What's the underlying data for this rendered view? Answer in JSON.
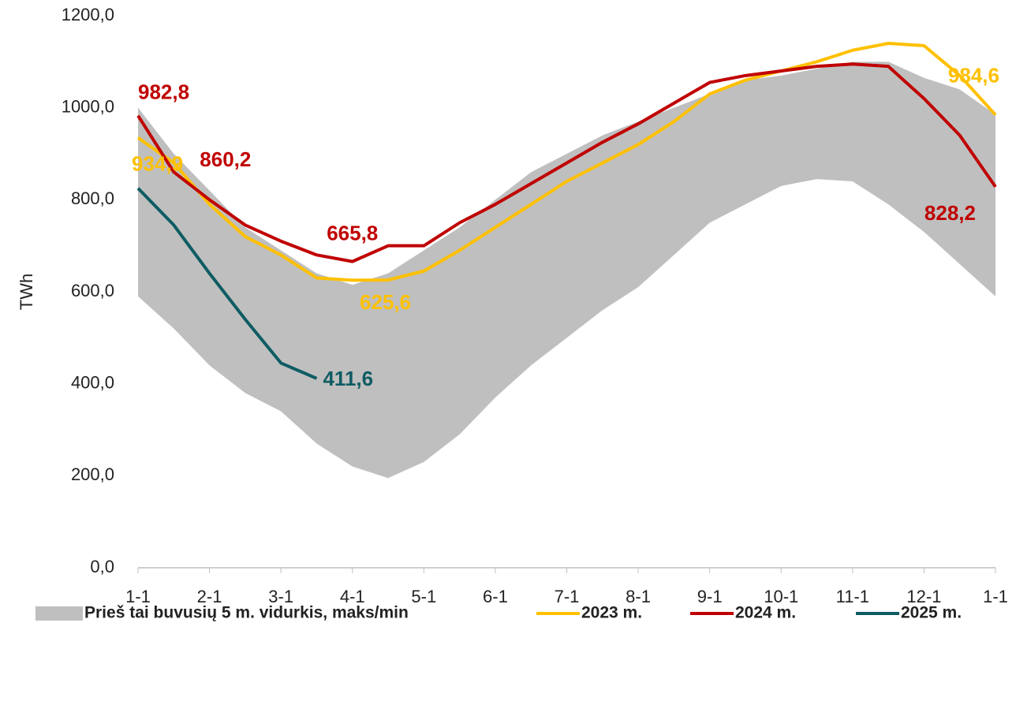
{
  "chart_data": {
    "type": "line",
    "y_label": "TWh",
    "x": [
      0,
      0.5,
      1,
      1.5,
      2,
      2.5,
      3,
      3.5,
      4,
      4.5,
      5,
      5.5,
      6,
      6.5,
      7,
      7.5,
      8,
      8.5,
      9,
      9.5,
      10,
      10.5,
      11,
      11.5,
      12
    ],
    "xlim": [
      0,
      12
    ],
    "xticks": [
      {
        "value": 0,
        "label": "1-1"
      },
      {
        "value": 1,
        "label": "2-1"
      },
      {
        "value": 2,
        "label": "3-1"
      },
      {
        "value": 3,
        "label": "4-1"
      },
      {
        "value": 4,
        "label": "5-1"
      },
      {
        "value": 5,
        "label": "6-1"
      },
      {
        "value": 6,
        "label": "7-1"
      },
      {
        "value": 7,
        "label": "8-1"
      },
      {
        "value": 8,
        "label": "9-1"
      },
      {
        "value": 9,
        "label": "10-1"
      },
      {
        "value": 10,
        "label": "11-1"
      },
      {
        "value": 11,
        "label": "12-1"
      },
      {
        "value": 12,
        "label": "1-1"
      }
    ],
    "ylim": [
      0,
      1200
    ],
    "yticks": [
      {
        "value": 0,
        "label": "0,0"
      },
      {
        "value": 200,
        "label": "200,0"
      },
      {
        "value": 400,
        "label": "400,0"
      },
      {
        "value": 600,
        "label": "600,0"
      },
      {
        "value": 800,
        "label": "800,0"
      },
      {
        "value": 1000,
        "label": "1000,0"
      },
      {
        "value": 1200,
        "label": "1200,0"
      }
    ],
    "band": {
      "name": "Prieš tai buvusių 5 m. vidurkis, maks/min",
      "color": "#bfbfbf",
      "upper": [
        1000,
        900,
        820,
        740,
        690,
        640,
        615,
        640,
        690,
        740,
        800,
        860,
        900,
        940,
        970,
        1000,
        1030,
        1060,
        1070,
        1085,
        1100,
        1100,
        1065,
        1040,
        985
      ],
      "lower": [
        590,
        520,
        440,
        380,
        340,
        270,
        220,
        195,
        230,
        290,
        370,
        440,
        500,
        560,
        610,
        680,
        750,
        790,
        830,
        845,
        840,
        790,
        730,
        660,
        590
      ]
    },
    "series": [
      {
        "name": "2023 m.",
        "color": "#ffc000",
        "values": [
          934.9,
          880,
          790,
          720,
          680,
          630,
          625,
          625.6,
          645,
          690,
          740,
          790,
          840,
          880,
          920,
          970,
          1030,
          1060,
          1080,
          1100,
          1125,
          1140,
          1135,
          1070,
          984.6
        ],
        "value_labels": [
          "934,9",
          null,
          null,
          null,
          null,
          null,
          null,
          "625,6",
          null,
          null,
          null,
          null,
          null,
          null,
          null,
          null,
          null,
          null,
          null,
          null,
          null,
          null,
          null,
          null,
          "984,6"
        ]
      },
      {
        "name": "2024 m.",
        "color": "#c00000",
        "values": [
          982.8,
          860.2,
          800,
          745,
          710,
          680,
          665.8,
          700,
          700,
          750,
          790,
          835,
          880,
          925,
          965,
          1010,
          1055,
          1070,
          1080,
          1090,
          1095,
          1090,
          1020,
          940,
          828.2
        ],
        "value_labels": [
          "982,8",
          "860,2",
          null,
          null,
          null,
          null,
          "665,8",
          null,
          null,
          null,
          null,
          null,
          null,
          null,
          null,
          null,
          null,
          null,
          null,
          null,
          null,
          null,
          null,
          null,
          "828,2"
        ]
      },
      {
        "name": "2025 m.",
        "color": "#0e5c63",
        "values": [
          825,
          745,
          640,
          540,
          445,
          411.6,
          null,
          null,
          null,
          null,
          null,
          null,
          null,
          null,
          null,
          null,
          null,
          null,
          null,
          null,
          null,
          null,
          null,
          null,
          null
        ],
        "value_labels": [
          null,
          null,
          null,
          null,
          null,
          "411,6",
          null,
          null,
          null,
          null,
          null,
          null,
          null,
          null,
          null,
          null,
          null,
          null,
          null,
          null,
          null,
          null,
          null,
          null,
          null
        ]
      }
    ]
  }
}
